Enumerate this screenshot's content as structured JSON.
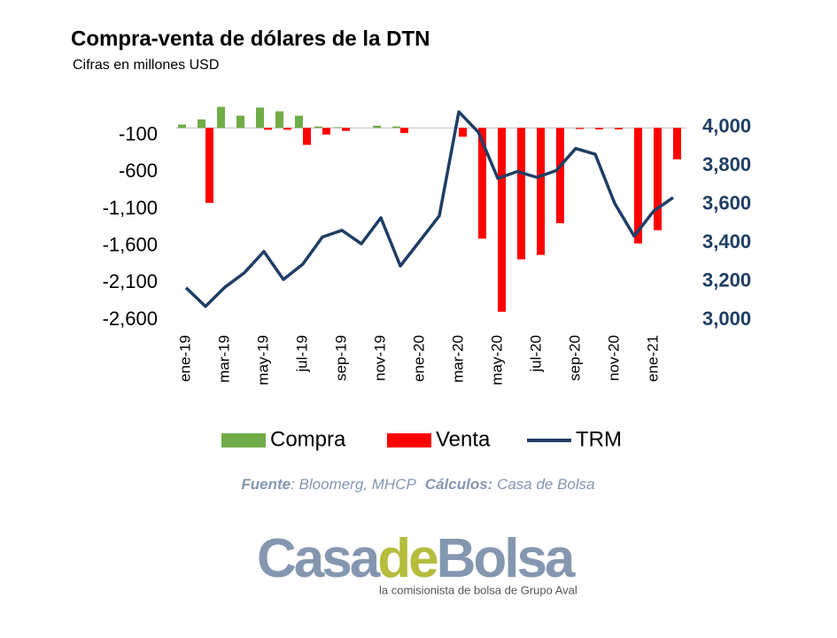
{
  "chart_data": {
    "type": "bar-line",
    "title": "Compra-venta de dólares de la DTN",
    "subtitle": "Cifras en millones USD",
    "categories": [
      "ene-19",
      null,
      "mar-19",
      null,
      "may-19",
      null,
      "jul-19",
      null,
      "sep-19",
      null,
      "nov-19",
      null,
      "ene-20",
      null,
      "mar-20",
      null,
      "may-20",
      null,
      "jul-20",
      null,
      "sep-20",
      null,
      "nov-20",
      null,
      "ene-21",
      null
    ],
    "series": [
      {
        "name": "Compra",
        "color": "#70ad47",
        "kind": "bar",
        "values": [
          45,
          115,
          285,
          165,
          275,
          225,
          165,
          20,
          10,
          0,
          30,
          20,
          0,
          0,
          0,
          0,
          0,
          0,
          0,
          0,
          0,
          0,
          0,
          0,
          0,
          0
        ]
      },
      {
        "name": "Venta",
        "color": "#ff0000",
        "kind": "bar",
        "values": [
          0,
          -1015,
          0,
          0,
          -25,
          -25,
          -230,
          -90,
          -40,
          0,
          0,
          -70,
          0,
          0,
          -120,
          -1500,
          -2490,
          -1780,
          -1720,
          -1290,
          -15,
          -20,
          -20,
          -1565,
          -1385,
          -425
        ]
      },
      {
        "name": "TRM",
        "color": "#1f3e64",
        "kind": "line",
        "axis": "y2",
        "values": [
          3167,
          3070,
          3170,
          3245,
          3355,
          3210,
          3290,
          3430,
          3465,
          3395,
          3530,
          3280,
          3410,
          3540,
          4080,
          3975,
          3735,
          3770,
          3740,
          3775,
          3890,
          3860,
          3605,
          3435,
          3565,
          3635
        ]
      }
    ],
    "ylim": [
      -2600,
      400
    ],
    "yticks": [
      -100,
      -600,
      {
        "value": -1100,
        "label": "-1,100"
      },
      {
        "value": -1600,
        "label": "-1,600"
      },
      {
        "value": -2100,
        "label": "-2,100"
      },
      {
        "value": -2600,
        "label": "-2,600"
      }
    ],
    "y2lim": [
      3000,
      4150
    ],
    "y2ticks": [
      {
        "value": 4000,
        "label": "4,000"
      },
      {
        "value": 3800,
        "label": "3,800"
      },
      {
        "value": 3600,
        "label": "3,600"
      },
      {
        "value": 3400,
        "label": "3,400"
      },
      {
        "value": 3200,
        "label": "3,200"
      },
      {
        "value": 3000,
        "label": "3,000"
      }
    ],
    "legend": "bottom",
    "source_label": "Fuente",
    "source_text": ": Bloomerg, MHCP",
    "calc_label": "Cálculos:",
    "calc_text": " Casa de Bolsa"
  },
  "logo": {
    "part1": "Casa",
    "part2": "de",
    "part3": "Bolsa",
    "tagline": "la comisionista de bolsa de Grupo Aval"
  }
}
